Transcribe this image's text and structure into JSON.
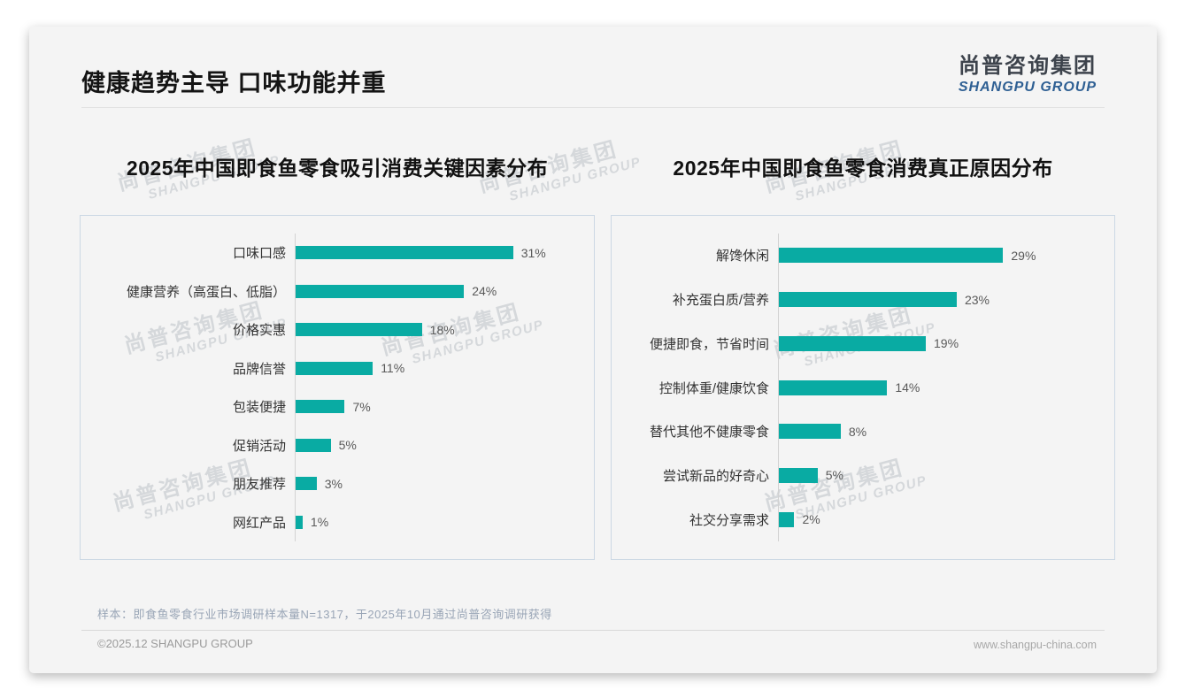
{
  "page": {
    "title": "健康趋势主导 口味功能并重",
    "logo_cn": "尚普咨询集团",
    "logo_en": "SHANGPU GROUP",
    "watermark_cn": "尚普咨询集团",
    "watermark_en": "SHANGPU GROUP",
    "note": "样本：即食鱼零食行业市场调研样本量N=1317，于2025年10月通过尚普咨询调研获得",
    "footer_left": "©2025.12 SHANGPU GROUP",
    "footer_right": "www.shangpu-china.com"
  },
  "colors": {
    "bar": "#09aba3",
    "card_background": "#f4f4f4",
    "logo_en_blue": "#2e5f93",
    "note_text": "#99a5b6",
    "chart_border": "#ccd8e4"
  },
  "chart_data": [
    {
      "type": "bar",
      "orientation": "horizontal",
      "title": "2025年中国即食鱼零食吸引消费关键因素分布",
      "categories": [
        "口味口感",
        "健康营养（高蛋白、低脂）",
        "价格实惠",
        "品牌信誉",
        "包装便捷",
        "促销活动",
        "朋友推荐",
        "网红产品"
      ],
      "values": [
        31,
        24,
        18,
        11,
        7,
        5,
        3,
        1
      ],
      "value_labels": [
        "31%",
        "24%",
        "18%",
        "11%",
        "7%",
        "5%",
        "3%",
        "1%"
      ],
      "unit": "%",
      "xlim": [
        0,
        41
      ],
      "grid": false,
      "legend": "none"
    },
    {
      "type": "bar",
      "orientation": "horizontal",
      "title": "2025年中国即食鱼零食消费真正原因分布",
      "categories": [
        "解馋休闲",
        "补充蛋白质/营养",
        "便捷即食，节省时间",
        "控制体重/健康饮食",
        "替代其他不健康零食",
        "尝试新品的好奇心",
        "社交分享需求"
      ],
      "values": [
        29,
        23,
        19,
        14,
        8,
        5,
        2
      ],
      "value_labels": [
        "29%",
        "23%",
        "19%",
        "14%",
        "8%",
        "5%",
        "2%"
      ],
      "unit": "%",
      "xlim": [
        0,
        42
      ],
      "grid": false,
      "legend": "none"
    }
  ]
}
